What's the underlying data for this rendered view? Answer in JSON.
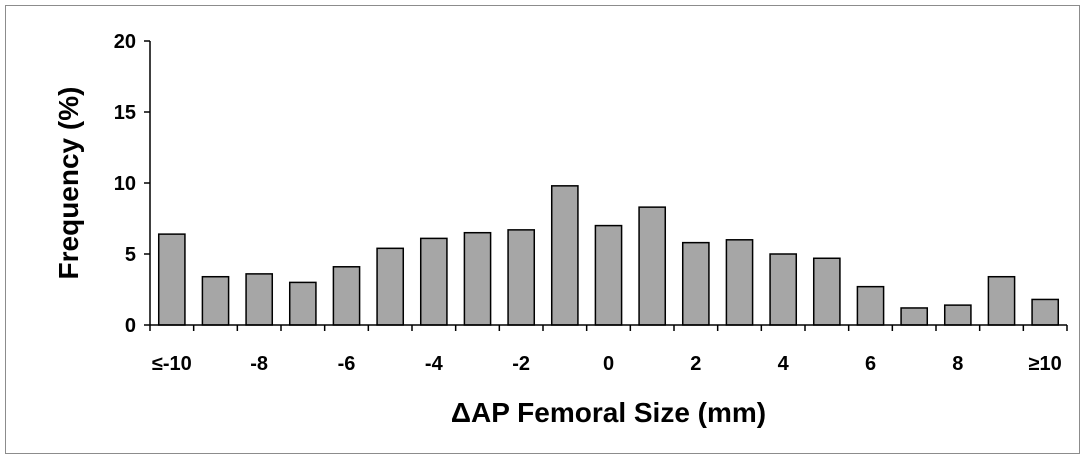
{
  "chart_data": {
    "type": "bar",
    "xlabel": "ΔAP Femoral Size (mm)",
    "ylabel": "Frequency (%)",
    "ylim": [
      0,
      20
    ],
    "yticks": [
      "0",
      "5",
      "10",
      "15",
      "20"
    ],
    "categories": [
      "≤-10",
      "-9",
      "-8",
      "-7",
      "-6",
      "-5",
      "-4",
      "-3",
      "-2",
      "-1",
      "0",
      "1",
      "2",
      "3",
      "4",
      "5",
      "6",
      "7",
      "8",
      "9",
      "≥10"
    ],
    "xtick_labels": [
      "≤-10",
      "-8",
      "-6",
      "-4",
      "-2",
      "0",
      "2",
      "4",
      "6",
      "8",
      "≥10"
    ],
    "values": [
      6.4,
      3.4,
      3.6,
      3.0,
      4.1,
      5.4,
      6.1,
      6.5,
      6.7,
      9.8,
      7.0,
      8.3,
      5.8,
      6.0,
      5.0,
      4.7,
      2.7,
      1.2,
      1.4,
      3.4,
      1.8
    ],
    "bar_color": "#a6a6a6",
    "bar_edge_color": "#000000",
    "grid": false,
    "legend": "none"
  }
}
